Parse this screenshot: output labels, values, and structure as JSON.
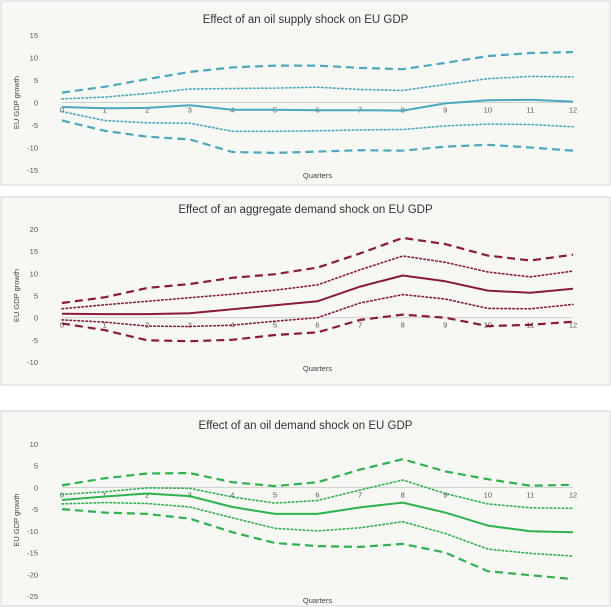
{
  "chart_data": [
    {
      "type": "line",
      "title": "Effect of an oil supply shock on EU GDP",
      "xlabel": "Quarters",
      "ylabel": "EU GDP growth",
      "x": [
        0,
        1,
        2,
        3,
        4,
        5,
        6,
        7,
        8,
        9,
        10,
        11,
        12
      ],
      "yticks": [
        15,
        10,
        5,
        0,
        -5,
        -10,
        -15
      ],
      "ylim": [
        -15,
        15
      ],
      "color": "#4aa8bf",
      "series": [
        {
          "style": "dashed",
          "values": [
            2.2,
            3.5,
            5.2,
            6.8,
            7.8,
            8.2,
            8.2,
            7.7,
            7.4,
            8.8,
            10.3,
            11.0,
            11.2
          ]
        },
        {
          "style": "dotted",
          "values": [
            0.8,
            1.2,
            2.0,
            3.0,
            3.1,
            3.2,
            3.4,
            2.9,
            2.7,
            4.0,
            5.3,
            5.8,
            5.7
          ]
        },
        {
          "style": "solid",
          "values": [
            -1.0,
            -1.3,
            -1.2,
            -0.6,
            -1.6,
            -1.6,
            -1.7,
            -1.7,
            -1.8,
            -0.2,
            0.5,
            0.6,
            0.2
          ]
        },
        {
          "style": "dotted",
          "values": [
            -2.0,
            -4.0,
            -4.5,
            -4.6,
            -6.4,
            -6.4,
            -6.3,
            -6.1,
            -6.0,
            -5.2,
            -4.8,
            -4.9,
            -5.4
          ]
        },
        {
          "style": "dashed",
          "values": [
            -4.0,
            -6.3,
            -7.6,
            -8.2,
            -11.0,
            -11.2,
            -10.9,
            -10.6,
            -10.7,
            -9.8,
            -9.4,
            -10.0,
            -10.7
          ]
        }
      ]
    },
    {
      "type": "line",
      "title": "Effect of an aggregate demand shock on EU GDP",
      "xlabel": "Quarters",
      "ylabel": "EU GDP growth",
      "x": [
        0,
        1,
        2,
        3,
        4,
        5,
        6,
        7,
        8,
        9,
        10,
        11,
        12
      ],
      "yticks": [
        20,
        15,
        10,
        5,
        0,
        -5,
        -10
      ],
      "ylim": [
        -10,
        20
      ],
      "color": "#8b1a3a",
      "series": [
        {
          "style": "dashed",
          "values": [
            3.3,
            4.6,
            6.7,
            7.6,
            9.0,
            9.8,
            11.3,
            14.5,
            18.0,
            16.6,
            14.0,
            12.9,
            14.2
          ]
        },
        {
          "style": "dotted",
          "values": [
            2.0,
            2.9,
            3.7,
            4.5,
            5.3,
            6.2,
            7.4,
            10.8,
            13.9,
            12.5,
            10.3,
            9.2,
            10.5
          ]
        },
        {
          "style": "solid",
          "values": [
            0.9,
            0.8,
            0.8,
            1.0,
            1.9,
            2.8,
            3.7,
            7.0,
            9.5,
            8.2,
            6.1,
            5.6,
            6.5
          ]
        },
        {
          "style": "dotted",
          "values": [
            -0.5,
            -1.0,
            -1.9,
            -2.0,
            -1.7,
            -0.8,
            0.0,
            3.3,
            5.2,
            4.2,
            2.1,
            2.0,
            3.0
          ]
        },
        {
          "style": "dashed",
          "values": [
            -1.3,
            -2.8,
            -5.1,
            -5.3,
            -5.0,
            -3.9,
            -3.3,
            -0.5,
            0.7,
            0.0,
            -1.9,
            -1.6,
            -0.9
          ]
        }
      ]
    },
    {
      "type": "line",
      "title": "Effect of an oil demand shock on EU GDP",
      "xlabel": "Quarters",
      "ylabel": "EU GDP growth",
      "x": [
        0,
        1,
        2,
        3,
        4,
        5,
        6,
        7,
        8,
        9,
        10,
        11,
        12
      ],
      "yticks": [
        10,
        5,
        0,
        -5,
        -10,
        -15,
        -20,
        -25
      ],
      "ylim": [
        -25,
        10
      ],
      "color": "#2db34e",
      "series": [
        {
          "style": "dashed",
          "values": [
            0.5,
            2.1,
            3.2,
            3.3,
            1.2,
            0.3,
            1.2,
            4.1,
            6.5,
            3.7,
            1.9,
            0.4,
            0.6
          ]
        },
        {
          "style": "dotted",
          "values": [
            -1.6,
            -1.0,
            -0.1,
            -0.2,
            -2.2,
            -3.6,
            -3.0,
            -0.6,
            1.7,
            -1.4,
            -3.8,
            -4.7,
            -4.8
          ]
        },
        {
          "style": "solid",
          "values": [
            -2.9,
            -2.1,
            -1.4,
            -2.0,
            -4.5,
            -6.1,
            -6.1,
            -4.6,
            -3.5,
            -5.8,
            -8.8,
            -10.1,
            -10.3
          ]
        },
        {
          "style": "dotted",
          "values": [
            -3.8,
            -3.5,
            -3.7,
            -4.5,
            -7.0,
            -9.4,
            -10.0,
            -9.3,
            -7.9,
            -10.6,
            -14.2,
            -15.2,
            -15.8
          ]
        },
        {
          "style": "dashed",
          "values": [
            -5.0,
            -5.8,
            -6.1,
            -7.2,
            -10.3,
            -12.8,
            -13.5,
            -13.7,
            -13.0,
            -15.0,
            -19.3,
            -20.2,
            -21.1
          ]
        }
      ]
    }
  ]
}
